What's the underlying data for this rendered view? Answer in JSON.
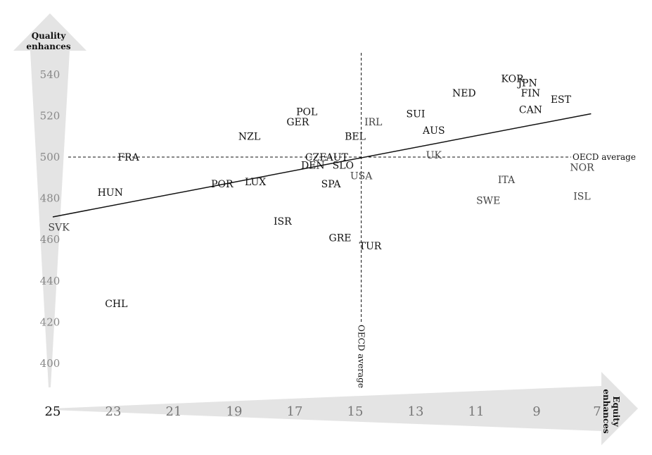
{
  "chart_data": {
    "type": "scatter",
    "y_axis_label": [
      "Quality",
      "enhances"
    ],
    "x_axis_label": [
      "Equity",
      "enhances"
    ],
    "ylim": [
      390,
      550
    ],
    "xlim": [
      25,
      7
    ],
    "y_ticks": [
      400,
      420,
      440,
      460,
      480,
      500,
      520,
      540
    ],
    "x_ticks": [
      25,
      23,
      21,
      19,
      17,
      15,
      13,
      11,
      9,
      7
    ],
    "reference_lines": {
      "horizontal": {
        "value": 500,
        "label": "OECD average"
      },
      "vertical": {
        "value": 14.8,
        "label": "OECD average"
      }
    },
    "trend_line": {
      "x": [
        25,
        7.2
      ],
      "y": [
        471,
        521
      ]
    },
    "points": [
      {
        "label": "KOR",
        "x": 9.8,
        "y": 538
      },
      {
        "label": "JPN",
        "x": 9.3,
        "y": 536
      },
      {
        "label": "NED",
        "x": 11.4,
        "y": 531
      },
      {
        "label": "FIN",
        "x": 9.2,
        "y": 531
      },
      {
        "label": "EST",
        "x": 8.2,
        "y": 528
      },
      {
        "label": "CAN",
        "x": 9.2,
        "y": 523
      },
      {
        "label": "SUI",
        "x": 13.0,
        "y": 521
      },
      {
        "label": "AUS",
        "x": 12.4,
        "y": 513
      },
      {
        "label": "IRL",
        "x": 14.4,
        "y": 517
      },
      {
        "label": "BEL",
        "x": 15.0,
        "y": 510
      },
      {
        "label": "POL",
        "x": 16.6,
        "y": 522
      },
      {
        "label": "GER",
        "x": 16.9,
        "y": 517
      },
      {
        "label": "NZL",
        "x": 18.5,
        "y": 510
      },
      {
        "label": "FRA",
        "x": 22.5,
        "y": 500
      },
      {
        "label": "CZE",
        "x": 16.3,
        "y": 500
      },
      {
        "label": "AUT",
        "x": 15.6,
        "y": 500
      },
      {
        "label": "UK",
        "x": 12.4,
        "y": 501
      },
      {
        "label": "DEN",
        "x": 16.4,
        "y": 496
      },
      {
        "label": "SLO",
        "x": 15.4,
        "y": 496
      },
      {
        "label": "USA",
        "x": 14.8,
        "y": 491
      },
      {
        "label": "SPA",
        "x": 15.8,
        "y": 487
      },
      {
        "label": "LUX",
        "x": 18.3,
        "y": 488
      },
      {
        "label": "POR",
        "x": 19.4,
        "y": 487
      },
      {
        "label": "HUN",
        "x": 23.1,
        "y": 483
      },
      {
        "label": "SVK",
        "x": 24.8,
        "y": 466
      },
      {
        "label": "ISR",
        "x": 17.4,
        "y": 469
      },
      {
        "label": "GRE",
        "x": 15.5,
        "y": 461
      },
      {
        "label": "TUR",
        "x": 14.5,
        "y": 457
      },
      {
        "label": "CHL",
        "x": 22.9,
        "y": 429
      },
      {
        "label": "ITA",
        "x": 10.0,
        "y": 489
      },
      {
        "label": "SWE",
        "x": 10.6,
        "y": 479
      },
      {
        "label": "NOR",
        "x": 7.5,
        "y": 495
      },
      {
        "label": "ISL",
        "x": 7.5,
        "y": 481
      }
    ]
  }
}
